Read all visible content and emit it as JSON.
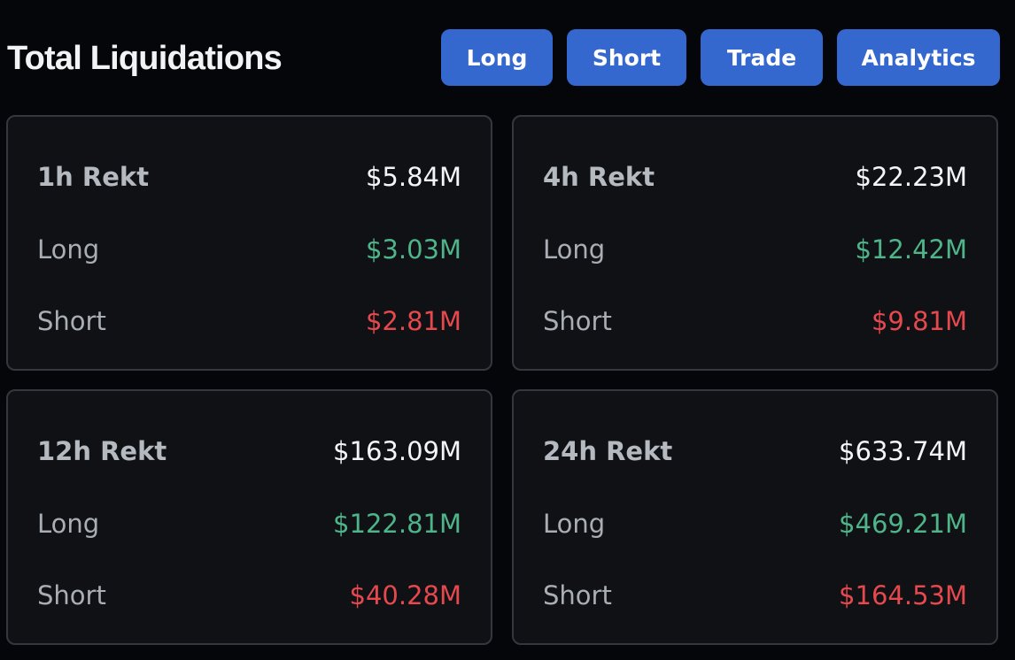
{
  "title": "Total Liquidations",
  "buttons": {
    "long": "Long",
    "short": "Short",
    "trade": "Trade",
    "analytics": "Analytics"
  },
  "colors": {
    "button_bg": "#3568cf",
    "long_value": "#4fb48a",
    "short_value": "#e5484d",
    "card_bg": "#0f1115",
    "page_bg": "#05060a"
  },
  "cards": {
    "h1": {
      "label": "1h Rekt",
      "total": "$5.84M",
      "long_label": "Long",
      "long": "$3.03M",
      "short_label": "Short",
      "short": "$2.81M"
    },
    "h4": {
      "label": "4h Rekt",
      "total": "$22.23M",
      "long_label": "Long",
      "long": "$12.42M",
      "short_label": "Short",
      "short": "$9.81M"
    },
    "h12": {
      "label": "12h Rekt",
      "total": "$163.09M",
      "long_label": "Long",
      "long": "$122.81M",
      "short_label": "Short",
      "short": "$40.28M"
    },
    "h24": {
      "label": "24h Rekt",
      "total": "$633.74M",
      "long_label": "Long",
      "long": "$469.21M",
      "short_label": "Short",
      "short": "$164.53M"
    }
  }
}
